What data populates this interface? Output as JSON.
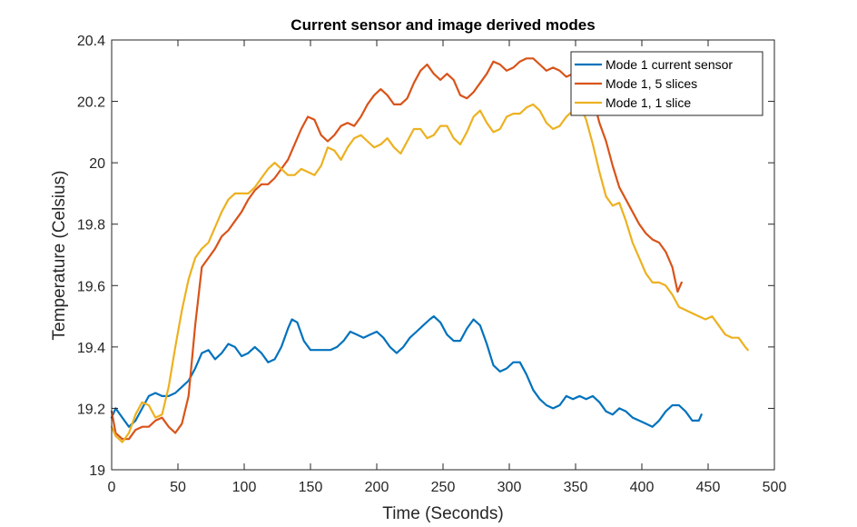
{
  "chart_data": {
    "type": "line",
    "title": "Current sensor and image derived modes",
    "xlabel": "Time (Seconds)",
    "ylabel": "Temperature (Celsius)",
    "xlim": [
      0,
      500
    ],
    "ylim": [
      19,
      20.4
    ],
    "xticks": [
      0,
      50,
      100,
      150,
      200,
      250,
      300,
      350,
      400,
      450,
      500
    ],
    "yticks": [
      19,
      19.2,
      19.4,
      19.6,
      19.8,
      20,
      20.2,
      20.4
    ],
    "grid": false,
    "legend_position": "top-right",
    "series": [
      {
        "name": "Mode 1 current sensor",
        "color": "#0072BD",
        "x": [
          0,
          3,
          8,
          13,
          18,
          23,
          28,
          33,
          38,
          43,
          48,
          53,
          58,
          63,
          68,
          73,
          78,
          83,
          88,
          93,
          98,
          103,
          108,
          113,
          118,
          123,
          128,
          133,
          136,
          140,
          145,
          150,
          155,
          160,
          165,
          170,
          175,
          180,
          185,
          190,
          195,
          200,
          205,
          210,
          215,
          220,
          225,
          230,
          235,
          240,
          243,
          248,
          253,
          258,
          263,
          268,
          273,
          278,
          283,
          288,
          293,
          298,
          303,
          308,
          313,
          318,
          323,
          328,
          333,
          338,
          343,
          348,
          353,
          358,
          363,
          368,
          373,
          378,
          383,
          388,
          393,
          398,
          403,
          408,
          413,
          418,
          423,
          428,
          433,
          438,
          443,
          445
        ],
        "y": [
          19.17,
          19.2,
          19.17,
          19.14,
          19.16,
          19.2,
          19.24,
          19.25,
          19.24,
          19.24,
          19.25,
          19.27,
          19.29,
          19.33,
          19.38,
          19.39,
          19.36,
          19.38,
          19.41,
          19.4,
          19.37,
          19.38,
          19.4,
          19.38,
          19.35,
          19.36,
          19.4,
          19.46,
          19.49,
          19.48,
          19.42,
          19.39,
          19.39,
          19.39,
          19.39,
          19.4,
          19.42,
          19.45,
          19.44,
          19.43,
          19.44,
          19.45,
          19.43,
          19.4,
          19.38,
          19.4,
          19.43,
          19.45,
          19.47,
          19.49,
          19.5,
          19.48,
          19.44,
          19.42,
          19.42,
          19.46,
          19.49,
          19.47,
          19.41,
          19.34,
          19.32,
          19.33,
          19.35,
          19.35,
          19.31,
          19.26,
          19.23,
          19.21,
          19.2,
          19.21,
          19.24,
          19.23,
          19.24,
          19.23,
          19.24,
          19.22,
          19.19,
          19.18,
          19.2,
          19.19,
          19.17,
          19.16,
          19.15,
          19.14,
          19.16,
          19.19,
          19.21,
          19.21,
          19.19,
          19.16,
          19.16,
          19.18
        ]
      },
      {
        "name": "Mode 1, 5 slices",
        "color": "#D95319",
        "x": [
          0,
          3,
          8,
          13,
          18,
          23,
          28,
          33,
          38,
          43,
          48,
          53,
          58,
          63,
          68,
          73,
          78,
          83,
          88,
          93,
          98,
          103,
          108,
          113,
          118,
          123,
          128,
          133,
          138,
          143,
          148,
          153,
          158,
          163,
          168,
          173,
          178,
          183,
          188,
          193,
          198,
          203,
          208,
          213,
          218,
          223,
          228,
          233,
          238,
          243,
          248,
          253,
          258,
          263,
          268,
          273,
          278,
          283,
          288,
          293,
          298,
          303,
          308,
          313,
          318,
          323,
          328,
          333,
          338,
          343,
          348,
          353,
          358,
          363,
          368,
          373,
          378,
          383,
          388,
          393,
          398,
          403,
          408,
          413,
          418,
          423,
          427,
          430
        ],
        "y": [
          19.19,
          19.12,
          19.1,
          19.1,
          19.13,
          19.14,
          19.14,
          19.16,
          19.17,
          19.14,
          19.12,
          19.15,
          19.24,
          19.47,
          19.66,
          19.69,
          19.72,
          19.76,
          19.78,
          19.81,
          19.84,
          19.88,
          19.91,
          19.93,
          19.93,
          19.95,
          19.98,
          20.01,
          20.06,
          20.11,
          20.15,
          20.14,
          20.09,
          20.07,
          20.09,
          20.12,
          20.13,
          20.12,
          20.15,
          20.19,
          20.22,
          20.24,
          20.22,
          20.19,
          20.19,
          20.21,
          20.26,
          20.3,
          20.32,
          20.29,
          20.27,
          20.29,
          20.27,
          20.22,
          20.21,
          20.23,
          20.26,
          20.29,
          20.33,
          20.32,
          20.3,
          20.31,
          20.33,
          20.34,
          20.34,
          20.32,
          20.3,
          20.31,
          20.3,
          20.28,
          20.29,
          20.3,
          20.27,
          20.21,
          20.13,
          20.07,
          19.99,
          19.92,
          19.88,
          19.84,
          19.8,
          19.77,
          19.75,
          19.74,
          19.71,
          19.66,
          19.58,
          19.61
        ]
      },
      {
        "name": "Mode 1, 1 slice",
        "color": "#EDB120",
        "x": [
          0,
          3,
          8,
          13,
          18,
          23,
          28,
          33,
          38,
          43,
          48,
          53,
          58,
          63,
          68,
          73,
          78,
          83,
          88,
          93,
          98,
          103,
          108,
          113,
          118,
          123,
          128,
          133,
          138,
          143,
          148,
          153,
          158,
          163,
          168,
          173,
          178,
          183,
          188,
          193,
          198,
          203,
          208,
          213,
          218,
          223,
          228,
          233,
          238,
          243,
          248,
          253,
          258,
          263,
          268,
          273,
          278,
          283,
          288,
          293,
          298,
          303,
          308,
          313,
          318,
          323,
          328,
          333,
          338,
          343,
          348,
          353,
          358,
          363,
          368,
          373,
          378,
          383,
          388,
          393,
          398,
          403,
          408,
          413,
          418,
          423,
          428,
          433,
          438,
          443,
          448,
          453,
          458,
          463,
          468,
          473,
          478,
          480
        ],
        "y": [
          19.14,
          19.11,
          19.09,
          19.12,
          19.18,
          19.22,
          19.21,
          19.17,
          19.18,
          19.27,
          19.4,
          19.52,
          19.62,
          19.69,
          19.72,
          19.74,
          19.79,
          19.84,
          19.88,
          19.9,
          19.9,
          19.9,
          19.92,
          19.95,
          19.98,
          20.0,
          19.98,
          19.96,
          19.96,
          19.98,
          19.97,
          19.96,
          19.99,
          20.05,
          20.04,
          20.01,
          20.05,
          20.08,
          20.09,
          20.07,
          20.05,
          20.06,
          20.08,
          20.05,
          20.03,
          20.07,
          20.11,
          20.11,
          20.08,
          20.09,
          20.12,
          20.12,
          20.08,
          20.06,
          20.1,
          20.15,
          20.17,
          20.13,
          20.1,
          20.11,
          20.15,
          20.16,
          20.16,
          20.18,
          20.19,
          20.17,
          20.13,
          20.11,
          20.12,
          20.15,
          20.17,
          20.19,
          20.14,
          20.06,
          19.97,
          19.89,
          19.86,
          19.87,
          19.81,
          19.74,
          19.69,
          19.64,
          19.61,
          19.61,
          19.6,
          19.57,
          19.53,
          19.52,
          19.51,
          19.5,
          19.49,
          19.5,
          19.47,
          19.44,
          19.43,
          19.43,
          19.4,
          19.39
        ]
      }
    ]
  }
}
